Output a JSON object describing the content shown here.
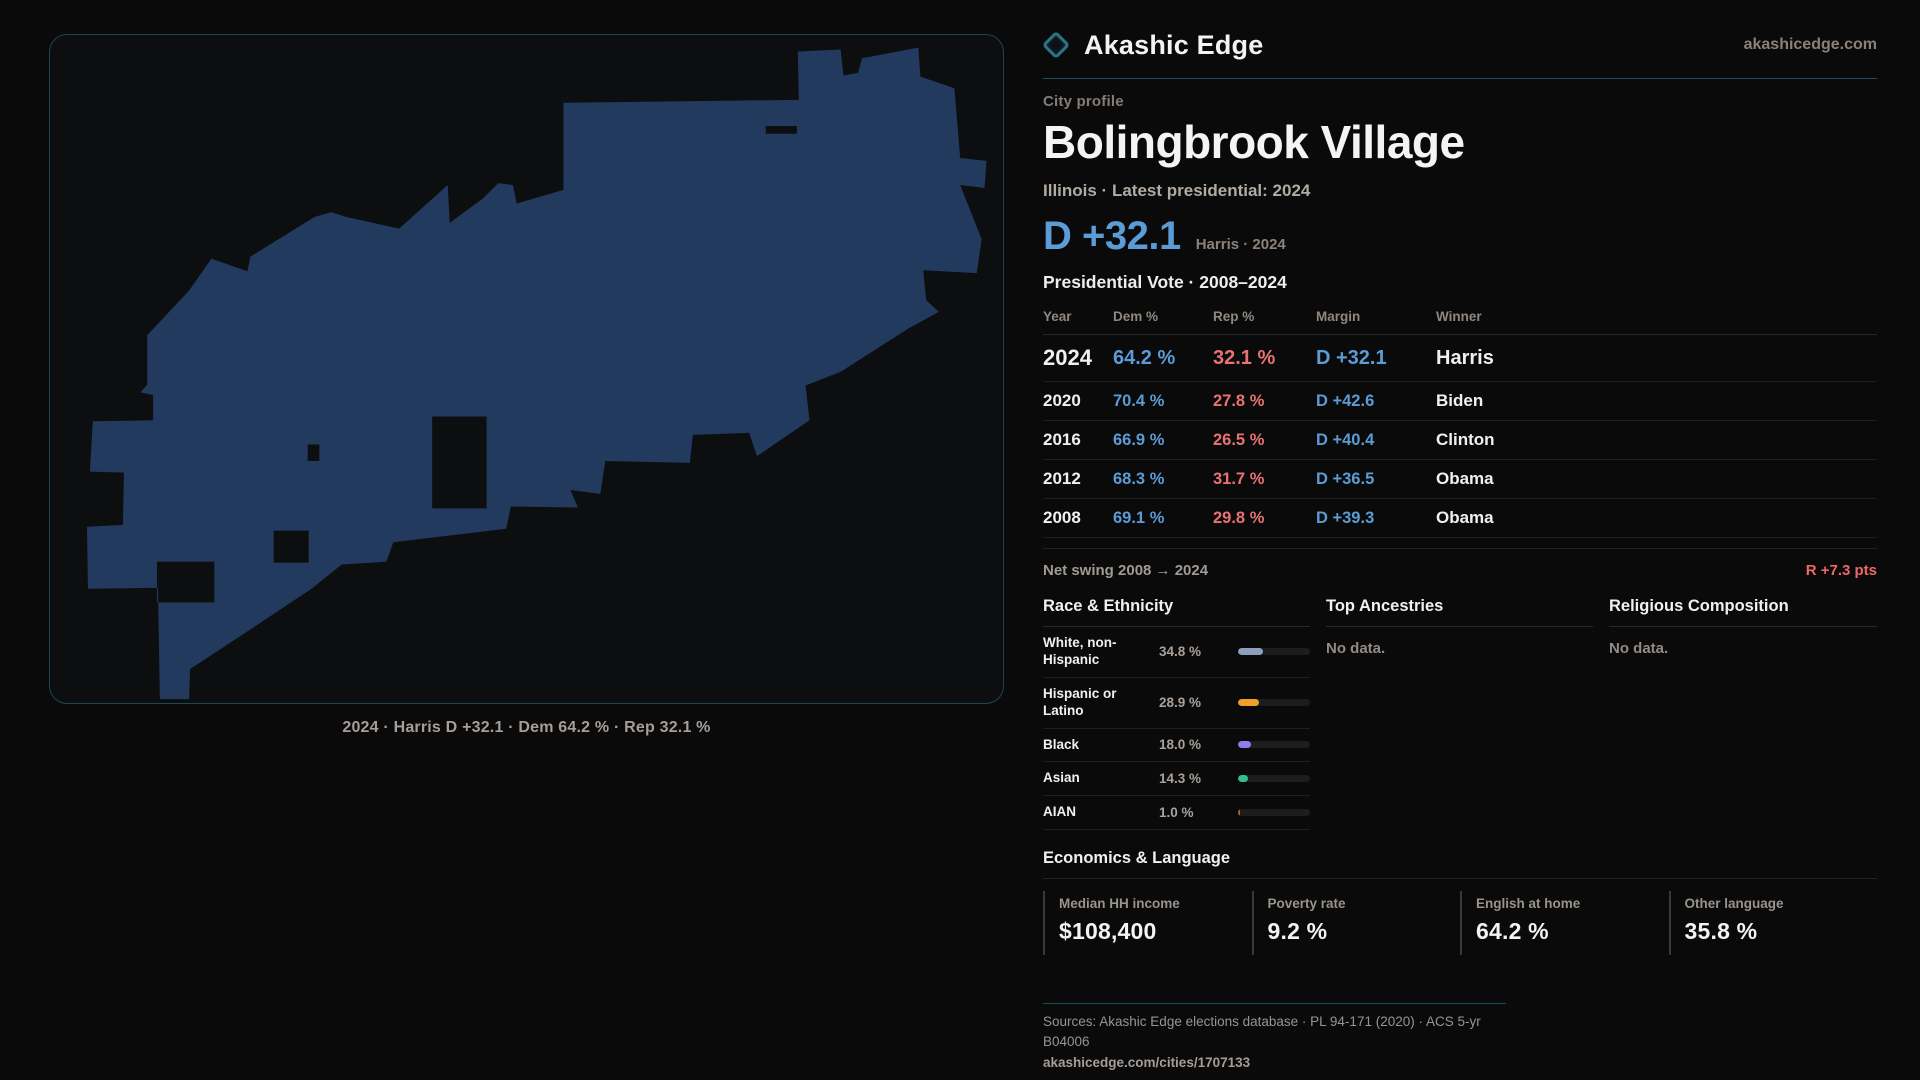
{
  "brand": {
    "name": "Akashic Edge",
    "site": "akashicedge.com",
    "accent_teal": "#2b7486"
  },
  "map": {
    "caption": "2024 · Harris D +32.1 · Dem 64.2 % · Rep 32.1 %",
    "shape_color": "#223a5e",
    "panel_border_color": "#1c4650"
  },
  "profile": {
    "kicker": "City profile",
    "title": "Bolingbrook Village",
    "subtitle": "Illinois · Latest presidential: 2024",
    "headline_margin": "D +32.1",
    "headline_note": "Harris · 2024",
    "table_title": "Presidential Vote · 2008–2024",
    "dem_color": "#5b9bd6",
    "rep_color": "#e87272"
  },
  "vote_table": {
    "columns": [
      "Year",
      "Dem %",
      "Rep %",
      "Margin",
      "Winner"
    ],
    "rows": [
      {
        "year": "2024",
        "dem": "64.2 %",
        "rep": "32.1 %",
        "margin": "D +32.1",
        "winner": "Harris"
      },
      {
        "year": "2020",
        "dem": "70.4 %",
        "rep": "27.8 %",
        "margin": "D +42.6",
        "winner": "Biden"
      },
      {
        "year": "2016",
        "dem": "66.9 %",
        "rep": "26.5 %",
        "margin": "D +40.4",
        "winner": "Clinton"
      },
      {
        "year": "2012",
        "dem": "68.3 %",
        "rep": "31.7 %",
        "margin": "D +36.5",
        "winner": "Obama"
      },
      {
        "year": "2008",
        "dem": "69.1 %",
        "rep": "29.8 %",
        "margin": "D +39.3",
        "winner": "Obama"
      }
    ],
    "net_swing_label": "Net swing 2008 → 2024",
    "net_swing_value": "R +7.3 pts",
    "net_swing_color": "#ee6666"
  },
  "race": {
    "title": "Race & Ethnicity",
    "rows": [
      {
        "label": "White, non-Hispanic",
        "value": "34.8 %",
        "pct": 34.8,
        "color": "#8c9fbc"
      },
      {
        "label": "Hispanic or Latino",
        "value": "28.9 %",
        "pct": 28.9,
        "color": "#eea126"
      },
      {
        "label": "Black",
        "value": "18.0 %",
        "pct": 18.0,
        "color": "#8f7cea"
      },
      {
        "label": "Asian",
        "value": "14.3 %",
        "pct": 14.3,
        "color": "#2fbe8f"
      },
      {
        "label": "AIAN",
        "value": "1.0 %",
        "pct": 1.0,
        "color": "#b15f2a"
      }
    ]
  },
  "ancestries": {
    "title": "Top Ancestries",
    "empty": "No data."
  },
  "religion": {
    "title": "Religious Composition",
    "empty": "No data."
  },
  "economics": {
    "title": "Economics & Language",
    "stats": [
      {
        "label": "Median HH income",
        "value": "$108,400"
      },
      {
        "label": "Poverty rate",
        "value": "9.2 %"
      },
      {
        "label": "English at home",
        "value": "64.2 %"
      },
      {
        "label": "Other language",
        "value": "35.8 %"
      }
    ]
  },
  "footer": {
    "sources": "Sources: Akashic Edge elections database · PL 94-171 (2020) · ACS 5-yr B04006",
    "permalink": "akashicedge.com/cities/1707133"
  }
}
